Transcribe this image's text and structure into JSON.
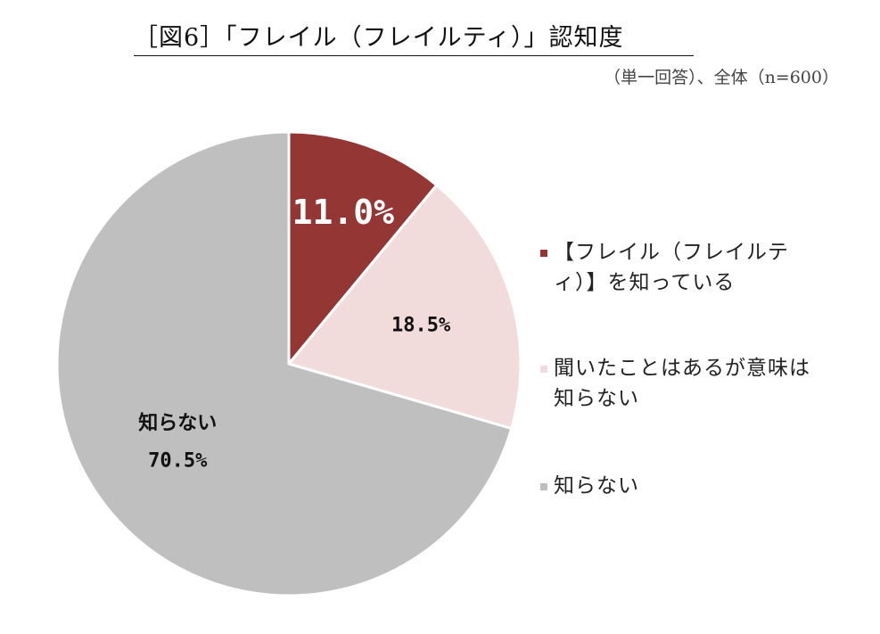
{
  "title": "［図6］「フレイル（フレイルティ）」認知度",
  "subtitle": "（単一回答）、全体（n=600）",
  "chart_data": {
    "type": "pie",
    "start_angle_deg": 0,
    "direction": "clockwise",
    "slices": [
      {
        "name": "【フレイル（フレイルティ）】を知っている",
        "value": 11.0,
        "display": "11.0%",
        "color": "#943634",
        "label_color": "#ffffff"
      },
      {
        "name": "聞いたことはあるが意味は知らない",
        "value": 18.5,
        "display": "18.5%",
        "color": "#f2dcdb",
        "label_color": "#111111"
      },
      {
        "name": "知らない",
        "value": 70.5,
        "display": "70.5%",
        "color": "#bfbfbf",
        "label_color": "#111111",
        "inside_category": "知らない"
      }
    ],
    "legend_position": "right"
  }
}
